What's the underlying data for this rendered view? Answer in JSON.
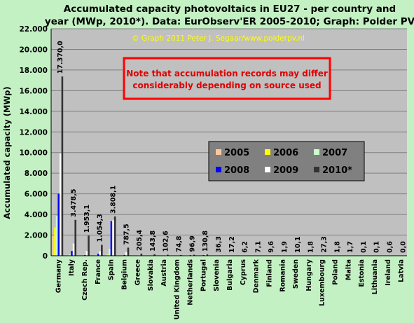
{
  "chart_data": {
    "type": "bar",
    "title_line1": "Accumulated capacity photovoltaics in EU27 - per country and",
    "title_line2": "year (MWp, 2010*). Data: EurObserv'ER 2005-2010; Graph: Polder PV",
    "copyright": "© Graph 2011 Peter J. Segaar/www.polderpv.nl",
    "note_line1": "Note that accumulation records may differ",
    "note_line2": "considerably depending on source used",
    "xlabel": "",
    "ylabel": "Accumulated capacity (MWp)",
    "ylim": [
      0,
      22000
    ],
    "yticks": [
      "0",
      "2.000",
      "4.000",
      "6.000",
      "8.000",
      "10.000",
      "12.000",
      "14.000",
      "16.000",
      "18.000",
      "20.000",
      "22.000"
    ],
    "grid": true,
    "legend_position": "center-right",
    "categories": [
      "Germany",
      "Italy",
      "Czech Rep.",
      "France",
      "Spain",
      "Belgium",
      "Greece",
      "Slovakia",
      "Austria",
      "United Kingdom",
      "Netherlands",
      "Portugal",
      "Slovenia",
      "Bulgaria",
      "Cyprus",
      "Denmark",
      "Finland",
      "Romania",
      "Sweden",
      "Hungary",
      "Luxembourg",
      "Poland",
      "Malta",
      "Estonia",
      "Lithuania",
      "Ireland",
      "Latvia"
    ],
    "data_labels": [
      "17.370,0",
      "3.478,5",
      "1.953,1",
      "1.054,3",
      "3.808,1",
      "787,5",
      "205,4",
      "143,8",
      "102,6",
      "74,8",
      "96,9",
      "130,8",
      "36,3",
      "17,2",
      "6,2",
      "7,1",
      "9,6",
      "1,9",
      "10,1",
      "1,8",
      "27,3",
      "1,8",
      "1,7",
      "0,1",
      "0,1",
      "0,6",
      "0,0"
    ],
    "series": [
      {
        "name": "2005",
        "color": "#ffc89c",
        "values": [
          1910,
          38,
          0.5,
          33,
          57,
          2,
          5,
          0,
          24,
          11,
          51,
          3,
          0.2,
          0,
          1,
          3,
          4,
          0.3,
          4,
          0.3,
          24,
          0.3,
          0.1,
          0,
          0,
          0.3,
          0
        ]
      },
      {
        "name": "2006",
        "color": "#ffff00",
        "values": [
          2743,
          50,
          1,
          43,
          118,
          4,
          7,
          0,
          26,
          14,
          53,
          3,
          0.3,
          0,
          1,
          3,
          4,
          0.4,
          5,
          0.3,
          24,
          0.4,
          0.2,
          0,
          0,
          0.3,
          0
        ]
      },
      {
        "name": "2007",
        "color": "#ccffcc",
        "values": [
          3846,
          120,
          4,
          75,
          655,
          23,
          9,
          0,
          28,
          18,
          53,
          18,
          1,
          0,
          2,
          3,
          5,
          0.5,
          6,
          0.4,
          24,
          0.6,
          0.3,
          0,
          0,
          0.4,
          0
        ]
      },
      {
        "name": "2008",
        "color": "#0000ff",
        "values": [
          6019,
          458,
          65,
          179,
          3354,
          71,
          18,
          0,
          32,
          23,
          57,
          68,
          2,
          1,
          3,
          3,
          6,
          0.5,
          8,
          0.5,
          25,
          1,
          0.4,
          0,
          0,
          0.5,
          0
        ]
      },
      {
        "name": "2009",
        "color": "#ffffff",
        "values": [
          9914,
          1181,
          465,
          430,
          3438,
          363,
          55,
          0,
          52,
          30,
          68,
          102,
          9,
          6,
          3,
          5,
          8,
          0.6,
          9,
          0.7,
          26,
          1.4,
          1.5,
          0,
          0,
          0.6,
          0
        ]
      },
      {
        "name": "2010*",
        "color": "#333333",
        "values": [
          17370,
          3478.5,
          1953.1,
          1054.3,
          3808.1,
          787.5,
          205.4,
          143.8,
          102.6,
          74.8,
          96.9,
          130.8,
          36.3,
          17.2,
          6.2,
          7.1,
          9.6,
          1.9,
          10.1,
          1.8,
          27.3,
          1.8,
          1.7,
          0.1,
          0.1,
          0.6,
          0
        ]
      }
    ]
  },
  "colors": {
    "page_background": "#c3f1c3",
    "plot_background": "#c0c0c0",
    "gridline": "#808080",
    "note_border": "#ff0000",
    "note_text": "#e00000",
    "copyright_text": "#ffff00",
    "legend_background": "#808080"
  }
}
